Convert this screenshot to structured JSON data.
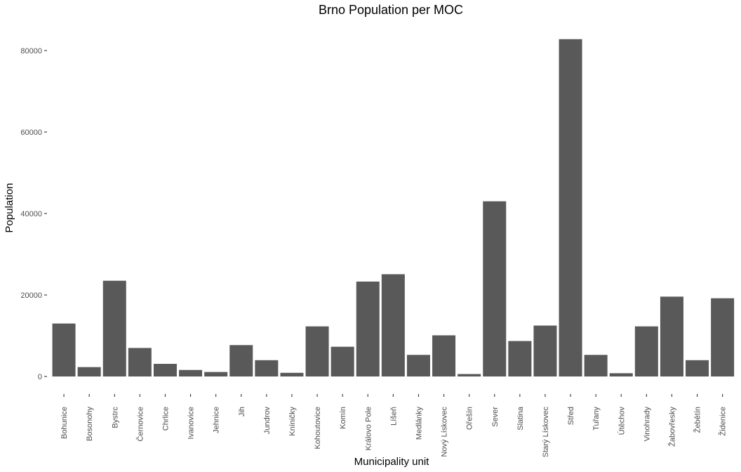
{
  "chart_data": {
    "type": "bar",
    "title": "Brno Population per MOC",
    "xlabel": "Municipality unit",
    "ylabel": "Population",
    "categories": [
      "Bohunice",
      "Bosonohy",
      "Bystrc",
      "Černovice",
      "Chrlice",
      "Ivanovice",
      "Jehnice",
      "Jih",
      "Jundrov",
      "Kníničky",
      "Kohoutovice",
      "Komín",
      "Královo Pole",
      "Líšeň",
      "Medlánky",
      "Nový Lískovec",
      "Ořešín",
      "Sever",
      "Slatina",
      "Starý Lískovec",
      "Střed",
      "Tuřany",
      "Útěchov",
      "Vinohrady",
      "Žabovřesky",
      "Žebětín",
      "Židenice"
    ],
    "values": [
      13000,
      2300,
      23500,
      7000,
      3100,
      1600,
      1100,
      7700,
      4000,
      900,
      12300,
      7300,
      23300,
      25100,
      5300,
      10100,
      600,
      43000,
      8700,
      12500,
      82800,
      5300,
      800,
      12300,
      19600,
      4000,
      19200
    ],
    "yticks": [
      "0",
      "20000",
      "40000",
      "60000",
      "80000"
    ],
    "ylim": [
      0,
      83000
    ],
    "grid": false,
    "legend": "none",
    "bar_color": "#595959"
  }
}
